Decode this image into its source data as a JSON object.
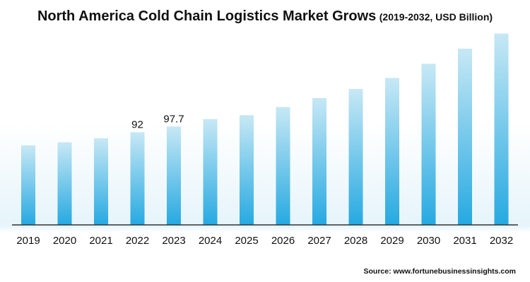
{
  "title": "North America Cold Chain Logistics Market Grows",
  "subtitle": "(2019-2032, USD Billion)",
  "source": "Source: www.fortunebusinessinsights.com",
  "colors": {
    "bar_top": "#c7e8f5",
    "bar_bottom": "#26a9e1",
    "axis": "#333333",
    "text": "#111111"
  },
  "chart_data": {
    "type": "bar",
    "title": "North America Cold Chain Logistics Market Grows",
    "subtitle": "(2019-2032, USD Billion)",
    "categories": [
      "2019",
      "2020",
      "2021",
      "2022",
      "2023",
      "2024",
      "2025",
      "2026",
      "2027",
      "2028",
      "2029",
      "2030",
      "2031",
      "2032"
    ],
    "values": [
      79,
      82,
      86,
      92,
      97.7,
      105,
      109,
      117,
      126,
      135,
      146,
      160,
      175,
      190
    ],
    "data_labels": [
      null,
      null,
      null,
      "92",
      "97.7",
      null,
      null,
      null,
      null,
      null,
      null,
      null,
      null,
      null
    ],
    "xlabel": "",
    "ylabel": "",
    "ylim": [
      0,
      210
    ],
    "grid": false,
    "legend": "none"
  }
}
